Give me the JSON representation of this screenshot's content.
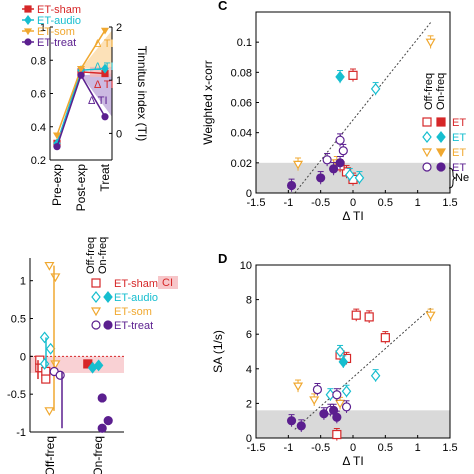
{
  "colors": {
    "sham": "#d62728",
    "audio": "#17becf",
    "som": "#f0a830",
    "treat": "#5b1f8f",
    "band": "#d9d9d9",
    "ci": "#f7c6c9"
  },
  "chart_data": [
    {
      "panel": "",
      "type": "line",
      "categories": [
        "Pre-exp",
        "Post-exp",
        "Treat"
      ],
      "xlabel": "",
      "ylabel": "",
      "y2label": "Tinnitus index (TI)",
      "ylim": [
        0.2,
        1.0
      ],
      "y2lim": [
        -0.5,
        2
      ],
      "yticks": [
        0.2,
        0.4,
        0.6,
        0.8,
        1
      ],
      "y2ticks": [
        0,
        1,
        2
      ],
      "legend": [
        "ET-sham",
        "ET-audio",
        "ET-som",
        "ET-treat"
      ],
      "series": [
        {
          "name": "ET-sham",
          "values": [
            0.3,
            0.73,
            0.72
          ]
        },
        {
          "name": "ET-audio",
          "values": [
            0.3,
            0.74,
            0.75
          ]
        },
        {
          "name": "ET-som",
          "values": [
            0.35,
            0.75,
            0.98
          ]
        },
        {
          "name": "ET-treat",
          "values": [
            0.28,
            0.71,
            0.46
          ]
        }
      ],
      "annotations": [
        "Δ TI",
        "Δ TI",
        "Δ TI",
        "Δ TI"
      ]
    },
    {
      "panel": "C",
      "type": "scatter",
      "xlabel": "Δ TI",
      "ylabel": "Weighted x-corr",
      "xlim": [
        -1.5,
        1.5
      ],
      "ylim": [
        0,
        0.12
      ],
      "xticks": [
        -1.5,
        -1,
        -0.5,
        0,
        0.5,
        1,
        1.5
      ],
      "yticks": [
        0,
        0.02,
        0.04,
        0.06,
        0.08,
        0.1
      ],
      "legend_header": [
        "Off-freq",
        "On-freq"
      ],
      "legend": [
        "ET",
        "ET",
        "ET",
        "ET"
      ],
      "band_label": "Ne",
      "band": [
        0,
        0.02
      ],
      "trend": [
        [
          -0.9,
          0.0
        ],
        [
          1.2,
          0.113
        ]
      ],
      "series": [
        {
          "name": "sham",
          "off": [
            [
              0.0,
              0.009
            ],
            [
              -0.1,
              0.014
            ],
            [
              -0.2,
              0.018
            ],
            [
              0.0,
              0.078
            ]
          ],
          "on": []
        },
        {
          "name": "audio",
          "off": [
            [
              0.1,
              0.01
            ],
            [
              -0.05,
              0.012
            ],
            [
              0.35,
              0.069
            ]
          ],
          "on": [
            [
              -0.2,
              0.077
            ]
          ]
        },
        {
          "name": "som",
          "off": [
            [
              -0.85,
              0.019
            ],
            [
              -0.25,
              0.02
            ],
            [
              1.2,
              0.1
            ]
          ],
          "on": []
        },
        {
          "name": "treat",
          "off": [
            [
              -0.4,
              0.022
            ],
            [
              -0.15,
              0.028
            ],
            [
              -0.2,
              0.035
            ]
          ],
          "on": [
            [
              -0.95,
              0.005
            ],
            [
              -0.5,
              0.01
            ],
            [
              -0.3,
              0.016
            ],
            [
              -0.2,
              0.02
            ]
          ]
        }
      ]
    },
    {
      "panel": "",
      "type": "scatter",
      "categories": [
        "Off-freq",
        "On-freq"
      ],
      "ylim": [
        -1,
        1.3
      ],
      "yticks": [
        -1,
        -0.5,
        0,
        0.5,
        1
      ],
      "legend_header": [
        "Off-freq",
        "On-freq"
      ],
      "legend": [
        "ET-sham",
        "ET-audio",
        "ET-som",
        "ET-treat"
      ],
      "ci_label": "CI",
      "series": [
        {
          "name": "ET-sham",
          "values": [
            -0.15,
            -0.2,
            -0.05,
            -0.3,
            -0.1
          ]
        },
        {
          "name": "ET-audio",
          "values": [
            0.25,
            0.1,
            -0.1,
            -0.12,
            -0.15
          ]
        },
        {
          "name": "ET-som",
          "values": [
            1.2,
            1.05,
            -0.72,
            -0.1
          ]
        },
        {
          "name": "ET-treat",
          "values": [
            -0.2,
            -0.25,
            -0.55,
            -0.85,
            -0.95
          ]
        }
      ]
    },
    {
      "panel": "D",
      "type": "scatter",
      "xlabel": "Δ TI",
      "ylabel": "SA (1/s)",
      "xlim": [
        -1.5,
        1.5
      ],
      "ylim": [
        0,
        10
      ],
      "xticks": [
        -1.5,
        -1,
        -0.5,
        0,
        0.5,
        1,
        1.5
      ],
      "yticks": [
        0,
        2,
        4,
        6,
        8,
        10
      ],
      "band": [
        0,
        1.6
      ],
      "trend": [
        [
          -0.9,
          0.5
        ],
        [
          1.2,
          7.5
        ]
      ],
      "series": [
        {
          "name": "sham",
          "off": [
            [
              0.05,
              7.1
            ],
            [
              0.25,
              7.0
            ],
            [
              0.5,
              5.8
            ],
            [
              -0.1,
              4.6
            ],
            [
              -0.2,
              4.8
            ],
            [
              -0.25,
              0.2
            ]
          ],
          "on": []
        },
        {
          "name": "audio",
          "off": [
            [
              0.35,
              3.6
            ],
            [
              -0.2,
              5.0
            ],
            [
              -0.1,
              2.7
            ],
            [
              -0.35,
              2.5
            ]
          ],
          "on": [
            [
              -0.15,
              4.4
            ]
          ]
        },
        {
          "name": "som",
          "off": [
            [
              -0.85,
              3.0
            ],
            [
              -0.6,
              2.2
            ],
            [
              -0.2,
              2.0
            ],
            [
              1.2,
              7.1
            ]
          ],
          "on": []
        },
        {
          "name": "treat",
          "off": [
            [
              -0.55,
              2.8
            ],
            [
              -0.25,
              2.5
            ],
            [
              -0.1,
              1.8
            ],
            [
              -0.35,
              1.6
            ]
          ],
          "on": [
            [
              -0.95,
              1.0
            ],
            [
              -0.8,
              0.7
            ],
            [
              -0.45,
              1.4
            ],
            [
              -0.3,
              1.6
            ],
            [
              -0.25,
              1.2
            ]
          ]
        }
      ]
    }
  ]
}
